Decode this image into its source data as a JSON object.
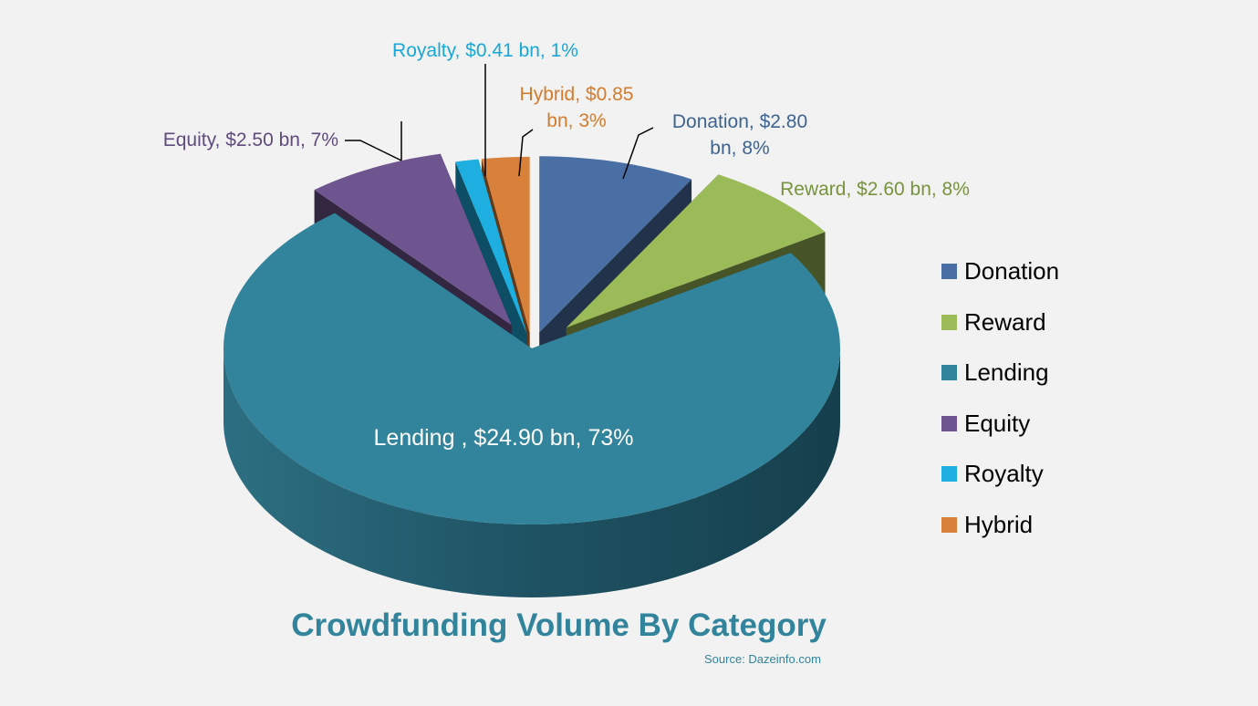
{
  "chart_data": {
    "type": "pie",
    "title": "Crowdfunding Volume By Category",
    "source": "Source: Dazeinfo.com",
    "unit": "$ bn",
    "slices": [
      {
        "name": "Donation",
        "value": 2.8,
        "percent": 8,
        "color": "#4a6fa5",
        "label_lines": [
          "Donation, $2.80",
          "bn, 8%"
        ],
        "label_color": "#3e6391"
      },
      {
        "name": "Reward",
        "value": 2.6,
        "percent": 8,
        "color": "#9bbb59",
        "label_lines": [
          "Reward, $2.60 bn, 8%"
        ],
        "label_color": "#77933c"
      },
      {
        "name": "Lending",
        "value": 24.9,
        "percent": 73,
        "color": "#31849b",
        "label_lines": [
          "Lending , $24.90 bn, 73%"
        ],
        "label_color": "#ffffff"
      },
      {
        "name": "Equity",
        "value": 2.5,
        "percent": 7,
        "color": "#6f5590",
        "label_lines": [
          "Equity, $2.50 bn, 7%"
        ],
        "label_color": "#5f4b7e"
      },
      {
        "name": "Royalty",
        "value": 0.41,
        "percent": 1,
        "color": "#1eaee0",
        "label_lines": [
          "Royalty, $0.41 bn, 1%"
        ],
        "label_color": "#17a7d8"
      },
      {
        "name": "Hybrid",
        "value": 0.85,
        "percent": 3,
        "color": "#d9813a",
        "label_lines": [
          "Hybrid, $0.85",
          "bn, 3%"
        ],
        "label_color": "#d67a2c"
      }
    ],
    "legend": {
      "placement": "right",
      "entries": [
        "Donation",
        "Reward",
        "Lending",
        "Equity",
        "Royalty",
        "Hybrid"
      ]
    }
  }
}
